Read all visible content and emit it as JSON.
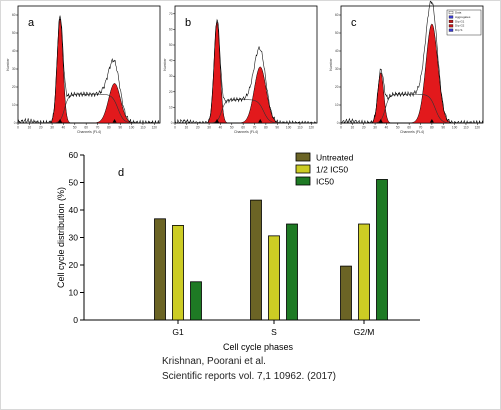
{
  "chart_data": [
    {
      "type": "area",
      "panel": "a",
      "ylabel": "Number",
      "xlabel": "Channels (FL4)",
      "x_ticks": [
        "0",
        "10",
        "20",
        "30",
        "40",
        "50",
        "60",
        "70",
        "80",
        "90",
        "100",
        "110",
        "120"
      ],
      "y_ticks": [
        "0",
        "10",
        "20",
        "30",
        "40",
        "50",
        "60"
      ],
      "ylim": [
        0,
        65
      ],
      "xlim": [
        0,
        125
      ],
      "g1_peak": {
        "center": 37,
        "height": 58
      },
      "g2_peak": {
        "center": 85,
        "height": 22
      },
      "s_phase_plateau": 16
    },
    {
      "type": "area",
      "panel": "b",
      "ylabel": "Number",
      "xlabel": "Channels (FL4)",
      "x_ticks": [
        "0",
        "10",
        "20",
        "30",
        "40",
        "50",
        "60",
        "70",
        "80",
        "90",
        "100",
        "110",
        "120"
      ],
      "y_ticks": [
        "0",
        "10",
        "20",
        "30",
        "40",
        "50",
        "60",
        "70"
      ],
      "ylim": [
        0,
        75
      ],
      "xlim": [
        0,
        125
      ],
      "g1_peak": {
        "center": 37,
        "height": 65
      },
      "g2_peak": {
        "center": 75,
        "height": 36
      },
      "s_phase_plateau": 15
    },
    {
      "type": "area",
      "panel": "c",
      "ylabel": "Number",
      "xlabel": "Channels (FL4)",
      "x_ticks": [
        "0",
        "10",
        "20",
        "30",
        "40",
        "50",
        "60",
        "70",
        "80",
        "90",
        "100",
        "110",
        "120"
      ],
      "y_ticks": [
        "0",
        "10",
        "20",
        "30",
        "40",
        "50",
        "60"
      ],
      "ylim": [
        0,
        65
      ],
      "xlim": [
        0,
        125
      ],
      "g1_peak": {
        "center": 35,
        "height": 28
      },
      "g2_peak": {
        "center": 80,
        "height": 55
      },
      "s_phase_plateau": 16,
      "legend": [
        "Data",
        "Aggregates",
        "Dip G1",
        "Dip G2",
        "Dip S"
      ]
    },
    {
      "type": "bar",
      "panel": "d",
      "categories": [
        "G1",
        "S",
        "G2/M"
      ],
      "series": [
        {
          "name": "Untreated",
          "values": [
            36.8,
            43.6,
            19.6
          ],
          "color": "#6b6425"
        },
        {
          "name": "1/2 IC50",
          "values": [
            34.4,
            30.6,
            34.9
          ],
          "color": "#cccc24"
        },
        {
          "name": "IC50",
          "values": [
            13.9,
            34.9,
            51.1
          ],
          "color": "#1e7a24"
        }
      ],
      "xlabel": "Cell cycle phases",
      "ylabel": "Cell cycle distribution (%)",
      "ylim": [
        0,
        60
      ],
      "y_ticks": [
        0,
        10,
        20,
        30,
        40,
        50,
        60
      ],
      "legend_position": "top-right"
    }
  ],
  "citation": {
    "line1": "Krishnan, Poorani et al.",
    "line2": "Scientific reports vol. 7,1 10962. (2017)"
  }
}
